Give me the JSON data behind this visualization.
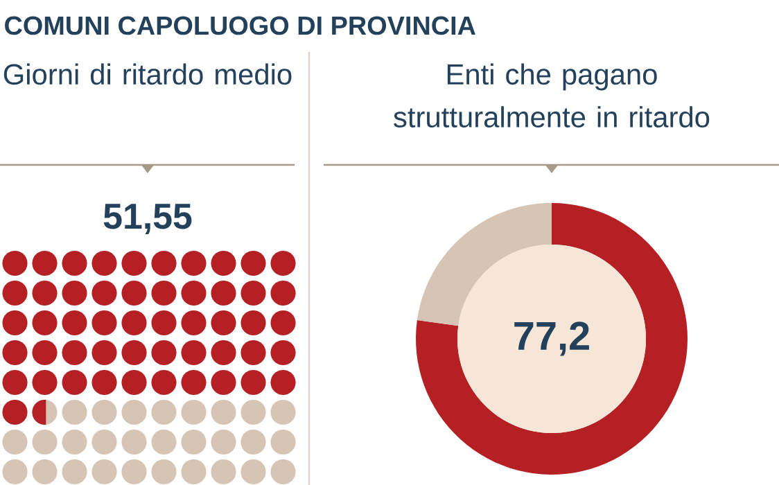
{
  "chart_data": [
    {
      "type": "other",
      "title": "COMUNI CAPOLUOGO DI PROVINCIA",
      "subtitle": "Giorni di ritardo medio",
      "values": [
        51.55
      ],
      "value_labels": [
        "51,55"
      ],
      "color": "#b52025"
    },
    {
      "type": "donut",
      "title": "Enti che pagano strutturalmente in ritardo",
      "categories": [
        null,
        null
      ],
      "values": [
        77.2,
        22.8
      ],
      "value_labels": [
        "77,2",
        null
      ],
      "colors": [
        "#b52025",
        "#d6c5b5"
      ]
    }
  ]
}
